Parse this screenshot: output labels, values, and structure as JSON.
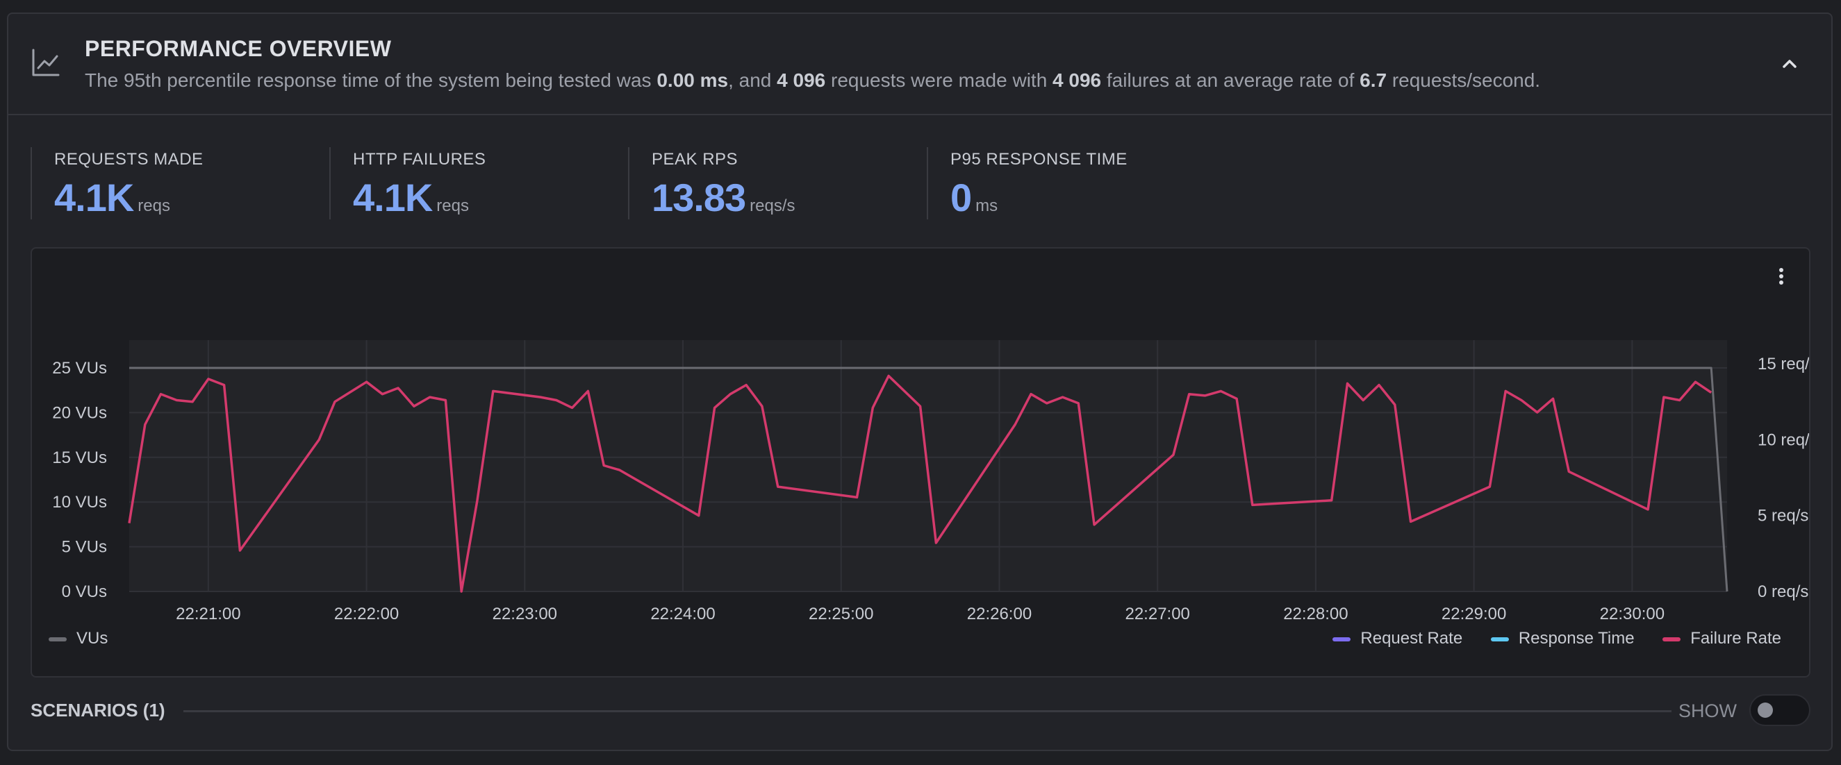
{
  "header": {
    "title": "PERFORMANCE OVERVIEW",
    "summary": {
      "prefix": "The 95th percentile response time of the system being tested was ",
      "p95": "0.00 ms",
      "mid1": ", and ",
      "requests": "4 096",
      "mid2": " requests were made with ",
      "failures": "4 096",
      "mid3": " failures at an average rate of ",
      "rate": "6.7",
      "suffix": " requests/second."
    },
    "icon": "line-chart-icon",
    "collapse_icon": "chevron-up-icon"
  },
  "stats": [
    {
      "label": "REQUESTS MADE",
      "value": "4.1K",
      "unit": "reqs"
    },
    {
      "label": "HTTP FAILURES",
      "value": "4.1K",
      "unit": "reqs"
    },
    {
      "label": "PEAK RPS",
      "value": "13.83",
      "unit": "reqs/s"
    },
    {
      "label": "P95 RESPONSE TIME",
      "value": "0",
      "unit": "ms"
    }
  ],
  "legend": {
    "vus": "VUs",
    "request_rate": "Request Rate",
    "response_time": "Response Time",
    "failure_rate": "Failure Rate"
  },
  "colors": {
    "accent_value": "#7fa5f2",
    "vus": "#6b6c72",
    "request_rate": "#7c6cf0",
    "response_time": "#5ec8f2",
    "failure_rate": "#d43a6c"
  },
  "scenarios": {
    "label": "SCENARIOS (1)",
    "show_label": "SHOW",
    "show_enabled": false
  },
  "chart_data": {
    "type": "line",
    "x_ticks": [
      "22:21:00",
      "22:22:00",
      "22:23:00",
      "22:24:00",
      "22:25:00",
      "22:26:00",
      "22:27:00",
      "22:28:00",
      "22:29:00",
      "22:30:00"
    ],
    "y_left_ticks": [
      "0 VUs",
      "5 VUs",
      "10 VUs",
      "15 VUs",
      "20 VUs",
      "25 VUs"
    ],
    "y_right_ticks": [
      "0 req/s",
      "5 req/s",
      "10 req/s",
      "15 req/s"
    ],
    "y_left_range": [
      0,
      25
    ],
    "y_right_range": [
      0,
      15
    ],
    "grid": true,
    "legend_left": "bottom-left",
    "legend_right": "bottom-right",
    "x_range": [
      "22:20:30",
      "22:30:36"
    ],
    "series": [
      {
        "name": "VUs",
        "axis": "left",
        "x": [
          "22:20:30",
          "22:30:30",
          "22:30:36"
        ],
        "values": [
          25,
          25,
          0
        ]
      },
      {
        "name": "Failure Rate",
        "axis": "right",
        "x": [
          "22:20:30",
          "22:20:36",
          "22:20:42",
          "22:20:48",
          "22:20:54",
          "22:21:00",
          "22:21:06",
          "22:21:12",
          "22:21:42",
          "22:21:48",
          "22:22:00",
          "22:22:06",
          "22:22:12",
          "22:22:18",
          "22:22:24",
          "22:22:30",
          "22:22:36",
          "22:22:42",
          "22:22:48",
          "22:23:06",
          "22:23:12",
          "22:23:18",
          "22:23:24",
          "22:23:30",
          "22:23:36",
          "22:24:06",
          "22:24:12",
          "22:24:18",
          "22:24:24",
          "22:24:30",
          "22:24:36",
          "22:25:06",
          "22:25:12",
          "22:25:18",
          "22:25:30",
          "22:25:36",
          "22:26:06",
          "22:26:12",
          "22:26:18",
          "22:26:24",
          "22:26:30",
          "22:26:36",
          "22:27:06",
          "22:27:12",
          "22:27:18",
          "22:27:24",
          "22:27:30",
          "22:27:36",
          "22:28:06",
          "22:28:12",
          "22:28:18",
          "22:28:24",
          "22:28:30",
          "22:28:36",
          "22:29:06",
          "22:29:12",
          "22:29:18",
          "22:29:24",
          "22:29:30",
          "22:29:36",
          "22:30:06",
          "22:30:12",
          "22:30:18",
          "22:30:24",
          "22:30:30"
        ],
        "values": [
          4.5,
          11,
          13,
          12.6,
          12.5,
          14,
          13.6,
          2.7,
          10,
          12.5,
          13.8,
          13,
          13.4,
          12.2,
          12.8,
          12.6,
          0,
          6,
          13.2,
          12.8,
          12.6,
          12.1,
          13.2,
          8.3,
          8,
          5,
          12.1,
          13,
          13.6,
          12.2,
          6.9,
          6.2,
          12.1,
          14.2,
          12.2,
          3.2,
          11,
          13,
          12.4,
          12.8,
          12.4,
          4.4,
          9,
          13,
          12.9,
          13.2,
          12.7,
          5.7,
          6,
          13.7,
          12.6,
          13.6,
          12.3,
          4.6,
          6.9,
          13.2,
          12.6,
          11.8,
          12.7,
          7.9,
          5.4,
          12.8,
          12.6,
          13.8,
          13.1
        ]
      }
    ]
  }
}
